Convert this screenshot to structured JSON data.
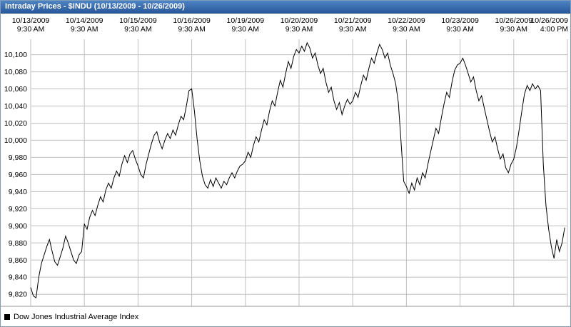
{
  "window": {
    "title": "Intraday Prices - $INDU (10/13/2009 - 10/26/2009)"
  },
  "legend": {
    "swatch_color": "#000000",
    "label": "Dow Jones Industrial Average Index"
  },
  "chart_data": {
    "type": "line",
    "title": "Intraday Prices - $INDU (10/13/2009 - 10/26/2009)",
    "line_color": "#000000",
    "grid_color": "#c0c0c0",
    "axis_line_color": "#9a9a9a",
    "grid": true,
    "x_axis": {
      "position": "top",
      "labels": [
        {
          "date": "10/13/2009",
          "time": "9:30 AM"
        },
        {
          "date": "10/14/2009",
          "time": "9:30 AM"
        },
        {
          "date": "10/15/2009",
          "time": "9:30 AM"
        },
        {
          "date": "10/16/2009",
          "time": "9:30 AM"
        },
        {
          "date": "10/19/2009",
          "time": "9:30 AM"
        },
        {
          "date": "10/20/2009",
          "time": "9:30 AM"
        },
        {
          "date": "10/21/2009",
          "time": "9:30 AM"
        },
        {
          "date": "10/22/2009",
          "time": "9:30 AM"
        },
        {
          "date": "10/23/2009",
          "time": "9:30 AM"
        },
        {
          "date": "10/26/2009",
          "time": "9:30 AM"
        },
        {
          "date": "10/26/2009",
          "time": "4:00 PM"
        }
      ]
    },
    "y_axis": {
      "ticks": [
        "10,100",
        "10,080",
        "10,060",
        "10,040",
        "10,020",
        "10,000",
        "9,980",
        "9,960",
        "9,940",
        "9,920",
        "9,900",
        "9,880",
        "9,860",
        "9,840",
        "9,820"
      ],
      "tick_values": [
        10100,
        10080,
        10060,
        10040,
        10020,
        10000,
        9980,
        9960,
        9940,
        9920,
        9900,
        9880,
        9860,
        9840,
        9820
      ],
      "range": [
        9806,
        10118
      ]
    },
    "series": [
      {
        "name": "Dow Jones Industrial Average Index",
        "points_per_day": 20,
        "days": 10,
        "values": [
          9828,
          9818,
          9816,
          9840,
          9856,
          9866,
          9876,
          9884,
          9870,
          9858,
          9854,
          9864,
          9874,
          9888,
          9880,
          9870,
          9860,
          9856,
          9866,
          9870,
          9902,
          9896,
          9910,
          9918,
          9912,
          9924,
          9934,
          9928,
          9942,
          9950,
          9944,
          9956,
          9964,
          9958,
          9972,
          9982,
          9974,
          9984,
          9988,
          9978,
          9970,
          9960,
          9956,
          9972,
          9984,
          9996,
          10006,
          10010,
          9998,
          9990,
          10000,
          10008,
          10002,
          10012,
          10006,
          10018,
          10028,
          10024,
          10040,
          10058,
          10060,
          10034,
          10002,
          9976,
          9958,
          9948,
          9944,
          9954,
          9946,
          9956,
          9950,
          9944,
          9952,
          9948,
          9956,
          9962,
          9956,
          9964,
          9970,
          9972,
          9976,
          9986,
          9980,
          9994,
          10004,
          9998,
          10012,
          10024,
          10018,
          10034,
          10046,
          10040,
          10056,
          10070,
          10062,
          10078,
          10092,
          10084,
          10098,
          10106,
          10102,
          10110,
          10104,
          10114,
          10108,
          10096,
          10102,
          10088,
          10078,
          10084,
          10068,
          10056,
          10062,
          10046,
          10036,
          10044,
          10030,
          10040,
          10048,
          10042,
          10046,
          10056,
          10050,
          10064,
          10076,
          10070,
          10084,
          10096,
          10090,
          10102,
          10112,
          10106,
          10096,
          10102,
          10088,
          10078,
          10066,
          10044,
          9998,
          9952,
          9946,
          9938,
          9950,
          9942,
          9956,
          9948,
          9962,
          9956,
          9972,
          9986,
          10000,
          10014,
          10008,
          10026,
          10042,
          10056,
          10050,
          10068,
          10082,
          10088,
          10090,
          10096,
          10088,
          10078,
          10068,
          10074,
          10058,
          10046,
          10052,
          10038,
          10024,
          10010,
          9998,
          10004,
          9990,
          9978,
          9984,
          9968,
          9962,
          9972,
          9978,
          9992,
          10012,
          10034,
          10054,
          10064,
          10058,
          10066,
          10060,
          10064,
          10058,
          9972,
          9924,
          9896,
          9876,
          9862,
          9884,
          9870,
          9880,
          9898
        ]
      }
    ]
  }
}
